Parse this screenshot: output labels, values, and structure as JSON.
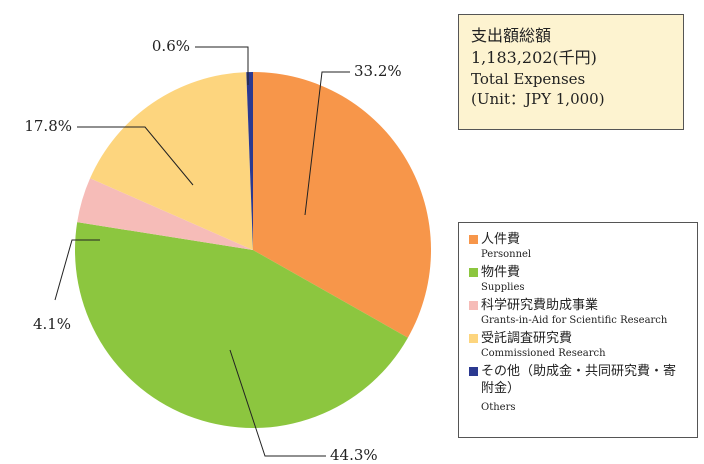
{
  "chart_data": {
    "type": "pie",
    "categories": [
      "人件費",
      "物件費",
      "科学研究費助成事業",
      "受託調査研究費",
      "その他（助成金・共同研究費・寄附金）"
    ],
    "category_subtitles": [
      "Personnel",
      "Supplies",
      "Grants-in-Aid for Scientific Research",
      "Commissioned Research",
      "Others"
    ],
    "values": [
      33.2,
      44.3,
      4.1,
      17.8,
      0.6
    ],
    "value_labels": [
      "33.2%",
      "44.3%",
      "4.1%",
      "17.8%",
      "0.6%"
    ],
    "colors": [
      "#f7964a",
      "#8cc63f",
      "#f6bcb8",
      "#fdd57e",
      "#2b3990"
    ],
    "annotations": [
      "支出額総額",
      "1,183,202(千円)",
      "Total Expenses",
      "(Unit：JPY 1,000)"
    ]
  }
}
